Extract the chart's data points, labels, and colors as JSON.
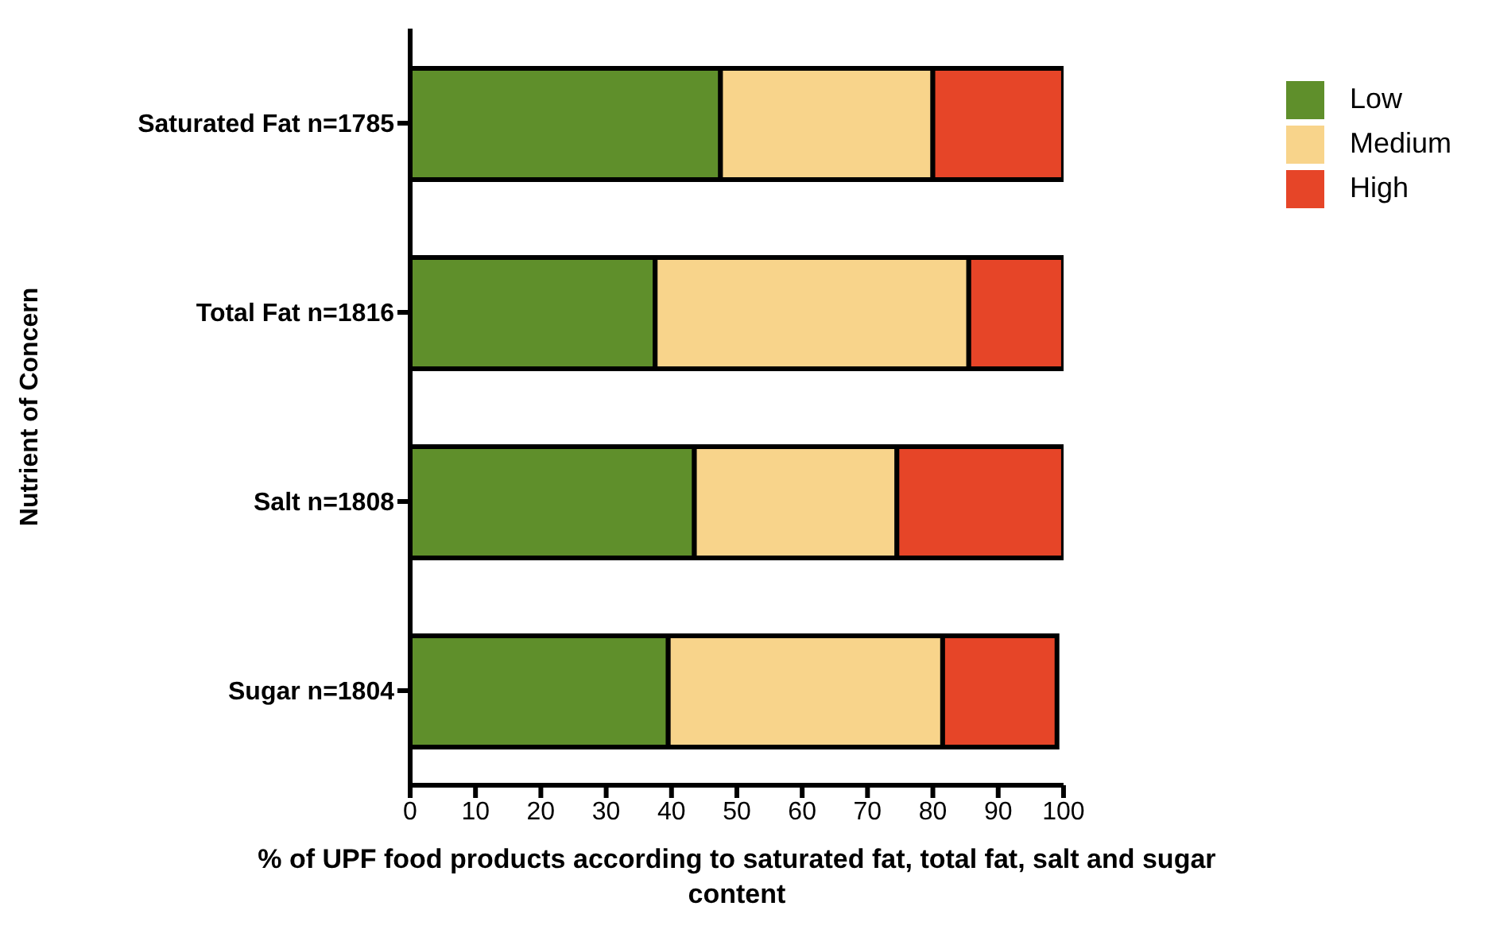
{
  "chart_data": {
    "type": "bar",
    "orientation": "horizontal",
    "stacked": true,
    "xlabel": "% of UPF food products according to saturated fat, total fat, salt and sugar content",
    "ylabel": "Nutrient of Concern",
    "categories": [
      "Saturated Fat n=1785",
      "Total Fat n=1816",
      "Salt n=1808",
      "Sugar n=1804"
    ],
    "series": [
      {
        "name": "Low",
        "color": "#5f8f2b",
        "values": [
          47.5,
          37.5,
          43.5,
          39.5
        ]
      },
      {
        "name": "Medium",
        "color": "#f8d48b",
        "values": [
          32.5,
          48,
          31,
          42
        ]
      },
      {
        "name": "High",
        "color": "#e64528",
        "values": [
          20,
          14.5,
          25.5,
          17.5
        ]
      }
    ],
    "xlim": [
      0,
      100
    ],
    "xticks": [
      0,
      10,
      20,
      30,
      40,
      50,
      60,
      70,
      80,
      90,
      100
    ],
    "grid": false,
    "legend": "top right"
  }
}
